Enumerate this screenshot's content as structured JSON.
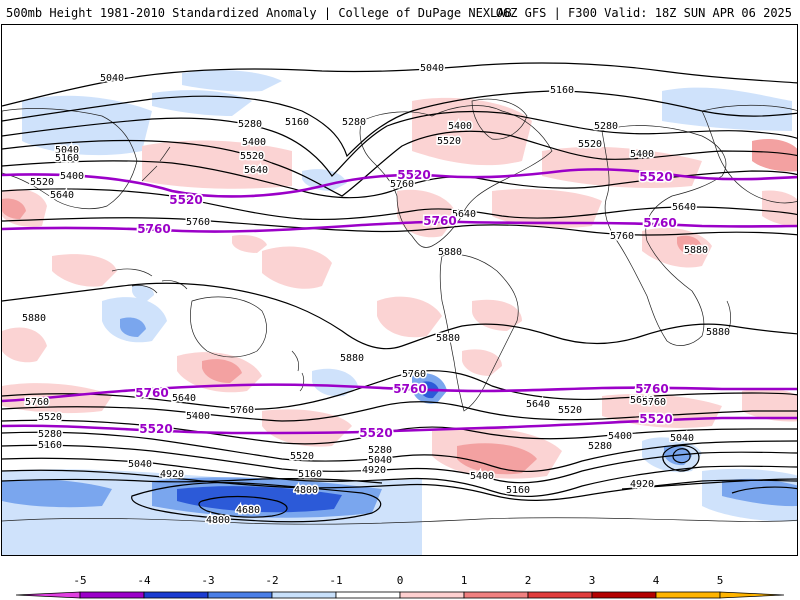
{
  "header": {
    "left": "500mb Height 1981-2010 Standardized Anomaly | College of DuPage NEXLAB",
    "right": "06Z GFS | F300 Valid: 18Z SUN APR 06 2025"
  },
  "contour_labels": [
    "5040",
    "5160",
    "5280",
    "5400",
    "5520",
    "5640",
    "5760",
    "5880",
    "4920",
    "4800",
    "4680"
  ],
  "purple_labels": [
    "5520",
    "5760"
  ],
  "colorbar": {
    "ticks": [
      "-5",
      "-4",
      "-3",
      "-2",
      "-1",
      "0",
      "1",
      "2",
      "3",
      "4",
      "5"
    ],
    "colors": [
      "#e040e0",
      "#9b00c8",
      "#1c3cd0",
      "#4a7ee6",
      "#c8e0fa",
      "#ffffff",
      "#ffd0d0",
      "#f08080",
      "#e03c3c",
      "#b40000",
      "#ffb400"
    ]
  },
  "colors": {
    "pos_weak": "#fbd3d3",
    "pos_mid": "#f3a1a1",
    "neg_weak": "#cfe2fb",
    "neg_mid": "#7aa6ee",
    "neg_strong": "#2c5ad8",
    "purple": "#9b00c8"
  }
}
